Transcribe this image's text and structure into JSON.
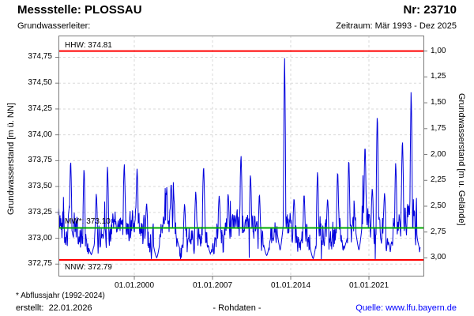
{
  "header": {
    "station_label": "Messstelle: PLOSSAU",
    "number_label": "Nr: 23710",
    "aquifer_label": "Grundwasserleiter:",
    "period_label": "Zeitraum: Mär 1993 - Dez 2025"
  },
  "footer": {
    "footnote": "* Abflussjahr (1992-2024)",
    "created_label": "erstellt:  22.01.2026",
    "data_type_label": "- Rohdaten -",
    "source_label": "Quelle: www.lfu.bayern.de",
    "source_color": "#0000ff"
  },
  "colors": {
    "series": "#0000dd",
    "limit_line": "#ff0000",
    "mean_line": "#00aa00",
    "grid": "#d9d9d9",
    "frame": "#7a7a7a",
    "text": "#000000"
  },
  "chart_data": {
    "type": "line",
    "title": "Messstelle: PLOSSAU  Nr: 23710",
    "grid": true,
    "legend_position": "none",
    "x_axis": {
      "label": "",
      "ticks": [
        {
          "label": "01.01.2000",
          "year": 2000
        },
        {
          "label": "01.01.2007",
          "year": 2007
        },
        {
          "label": "01.01.2014",
          "year": 2014
        },
        {
          "label": "01.01.2021",
          "year": 2021
        }
      ],
      "range_years": [
        1993.21,
        2025.95
      ]
    },
    "left_axis": {
      "label": "Grundwasserstand [m ü. NN]",
      "tick_labels": [
        "374,75",
        "374,50",
        "374,25",
        "374,00",
        "373,75",
        "373,50",
        "373,25",
        "373,00",
        "372,75"
      ],
      "tick_values": [
        374.75,
        374.5,
        374.25,
        374.0,
        373.75,
        373.5,
        373.25,
        373.0,
        372.75
      ],
      "range": [
        372.63,
        374.96
      ]
    },
    "right_axis": {
      "label": "Grundwasserstand [m u. Gelände]",
      "tick_labels": [
        "1,00",
        "1,25",
        "1,50",
        "1,75",
        "2,00",
        "2,25",
        "2,50",
        "2,75",
        "3,00"
      ],
      "tick_values": [
        1.0,
        1.25,
        1.5,
        1.75,
        2.0,
        2.25,
        2.5,
        2.75,
        3.0
      ],
      "ground_elevation_m_nn": 375.81
    },
    "reference_lines": [
      {
        "name": "HHW",
        "label": "HHW: 374.81",
        "value": 374.81,
        "color": "#ff0000",
        "label_side": "above"
      },
      {
        "name": "MW",
        "label": "MW*: 373.10",
        "value": 373.1,
        "color": "#00aa00",
        "label_side": "above"
      },
      {
        "name": "NNW",
        "label": "NNW: 372.79",
        "value": 372.79,
        "color": "#ff0000",
        "label_side": "below"
      }
    ],
    "series": {
      "name": "Rohdaten",
      "color": "#0000dd",
      "start": 1993.21,
      "end": 2025.6,
      "samples": 940,
      "min": 372.795,
      "max": 374.81,
      "seed": 42,
      "ar": 0.5,
      "noise_amp": 0.26,
      "spike_prob": 0.045,
      "peak_halfwidth": 0.1,
      "low_halfwidth": 0.28,
      "baseline": [
        [
          1993.21,
          373.2
        ],
        [
          1993.8,
          373.05
        ],
        [
          1994.6,
          373.1
        ],
        [
          1995.2,
          373.0
        ],
        [
          1996.1,
          372.92
        ],
        [
          1997.0,
          373.05
        ],
        [
          1998.0,
          373.1
        ],
        [
          1999.0,
          373.12
        ],
        [
          2000.3,
          373.18
        ],
        [
          2001.2,
          373.0
        ],
        [
          2002.0,
          372.9
        ],
        [
          2002.6,
          373.05
        ],
        [
          2003.2,
          373.15
        ],
        [
          2004.1,
          372.95
        ],
        [
          2005.0,
          373.0
        ],
        [
          2006.2,
          373.15
        ],
        [
          2006.9,
          372.95
        ],
        [
          2007.6,
          373.1
        ],
        [
          2008.5,
          373.05
        ],
        [
          2009.5,
          373.15
        ],
        [
          2010.5,
          373.08
        ],
        [
          2011.8,
          372.92
        ],
        [
          2012.6,
          373.05
        ],
        [
          2013.4,
          373.15
        ],
        [
          2014.2,
          373.08
        ],
        [
          2015.1,
          373.0
        ],
        [
          2016.0,
          372.9
        ],
        [
          2016.6,
          373.08
        ],
        [
          2017.5,
          373.0
        ],
        [
          2018.3,
          373.12
        ],
        [
          2019.0,
          373.02
        ],
        [
          2020.0,
          373.08
        ],
        [
          2020.8,
          373.18
        ],
        [
          2021.5,
          373.08
        ],
        [
          2022.0,
          373.15
        ],
        [
          2022.8,
          373.0
        ],
        [
          2023.5,
          373.12
        ],
        [
          2024.2,
          373.22
        ],
        [
          2024.9,
          373.25
        ],
        [
          2025.3,
          373.05
        ],
        [
          2025.6,
          372.97
        ]
      ],
      "peaks": [
        [
          1994.3,
          373.78
        ],
        [
          1995.5,
          373.71
        ],
        [
          1996.6,
          373.45
        ],
        [
          1997.6,
          373.72
        ],
        [
          1999.1,
          373.74
        ],
        [
          2000.25,
          373.68
        ],
        [
          2001.1,
          373.35
        ],
        [
          2002.9,
          373.5
        ],
        [
          2003.3,
          373.55
        ],
        [
          2004.5,
          373.35
        ],
        [
          2005.5,
          373.47
        ],
        [
          2006.2,
          373.72
        ],
        [
          2007.6,
          373.42
        ],
        [
          2008.4,
          373.45
        ],
        [
          2009.55,
          373.83
        ],
        [
          2010.4,
          373.64
        ],
        [
          2011.2,
          373.45
        ],
        [
          2012.9,
          373.63
        ],
        [
          2013.45,
          374.81
        ],
        [
          2014.3,
          373.4
        ],
        [
          2015.2,
          373.45
        ],
        [
          2016.4,
          373.67
        ],
        [
          2017.3,
          373.4
        ],
        [
          2018.2,
          373.67
        ],
        [
          2019.2,
          373.8
        ],
        [
          2019.9,
          373.66
        ],
        [
          2020.65,
          373.93
        ],
        [
          2021.3,
          373.5
        ],
        [
          2021.75,
          374.24
        ],
        [
          2022.4,
          373.45
        ],
        [
          2023.4,
          373.75
        ],
        [
          2024.0,
          373.98
        ],
        [
          2024.78,
          374.46
        ],
        [
          2025.3,
          373.5
        ]
      ],
      "lows": [
        [
          1996.15,
          372.84
        ],
        [
          2002.0,
          372.81
        ],
        [
          2004.1,
          372.9
        ],
        [
          2006.8,
          372.85
        ],
        [
          2011.85,
          372.83
        ],
        [
          2013.05,
          372.88
        ],
        [
          2016.0,
          372.8
        ],
        [
          2018.8,
          372.9
        ],
        [
          2020.1,
          372.88
        ],
        [
          2022.9,
          372.92
        ],
        [
          2025.55,
          372.9
        ]
      ]
    }
  }
}
